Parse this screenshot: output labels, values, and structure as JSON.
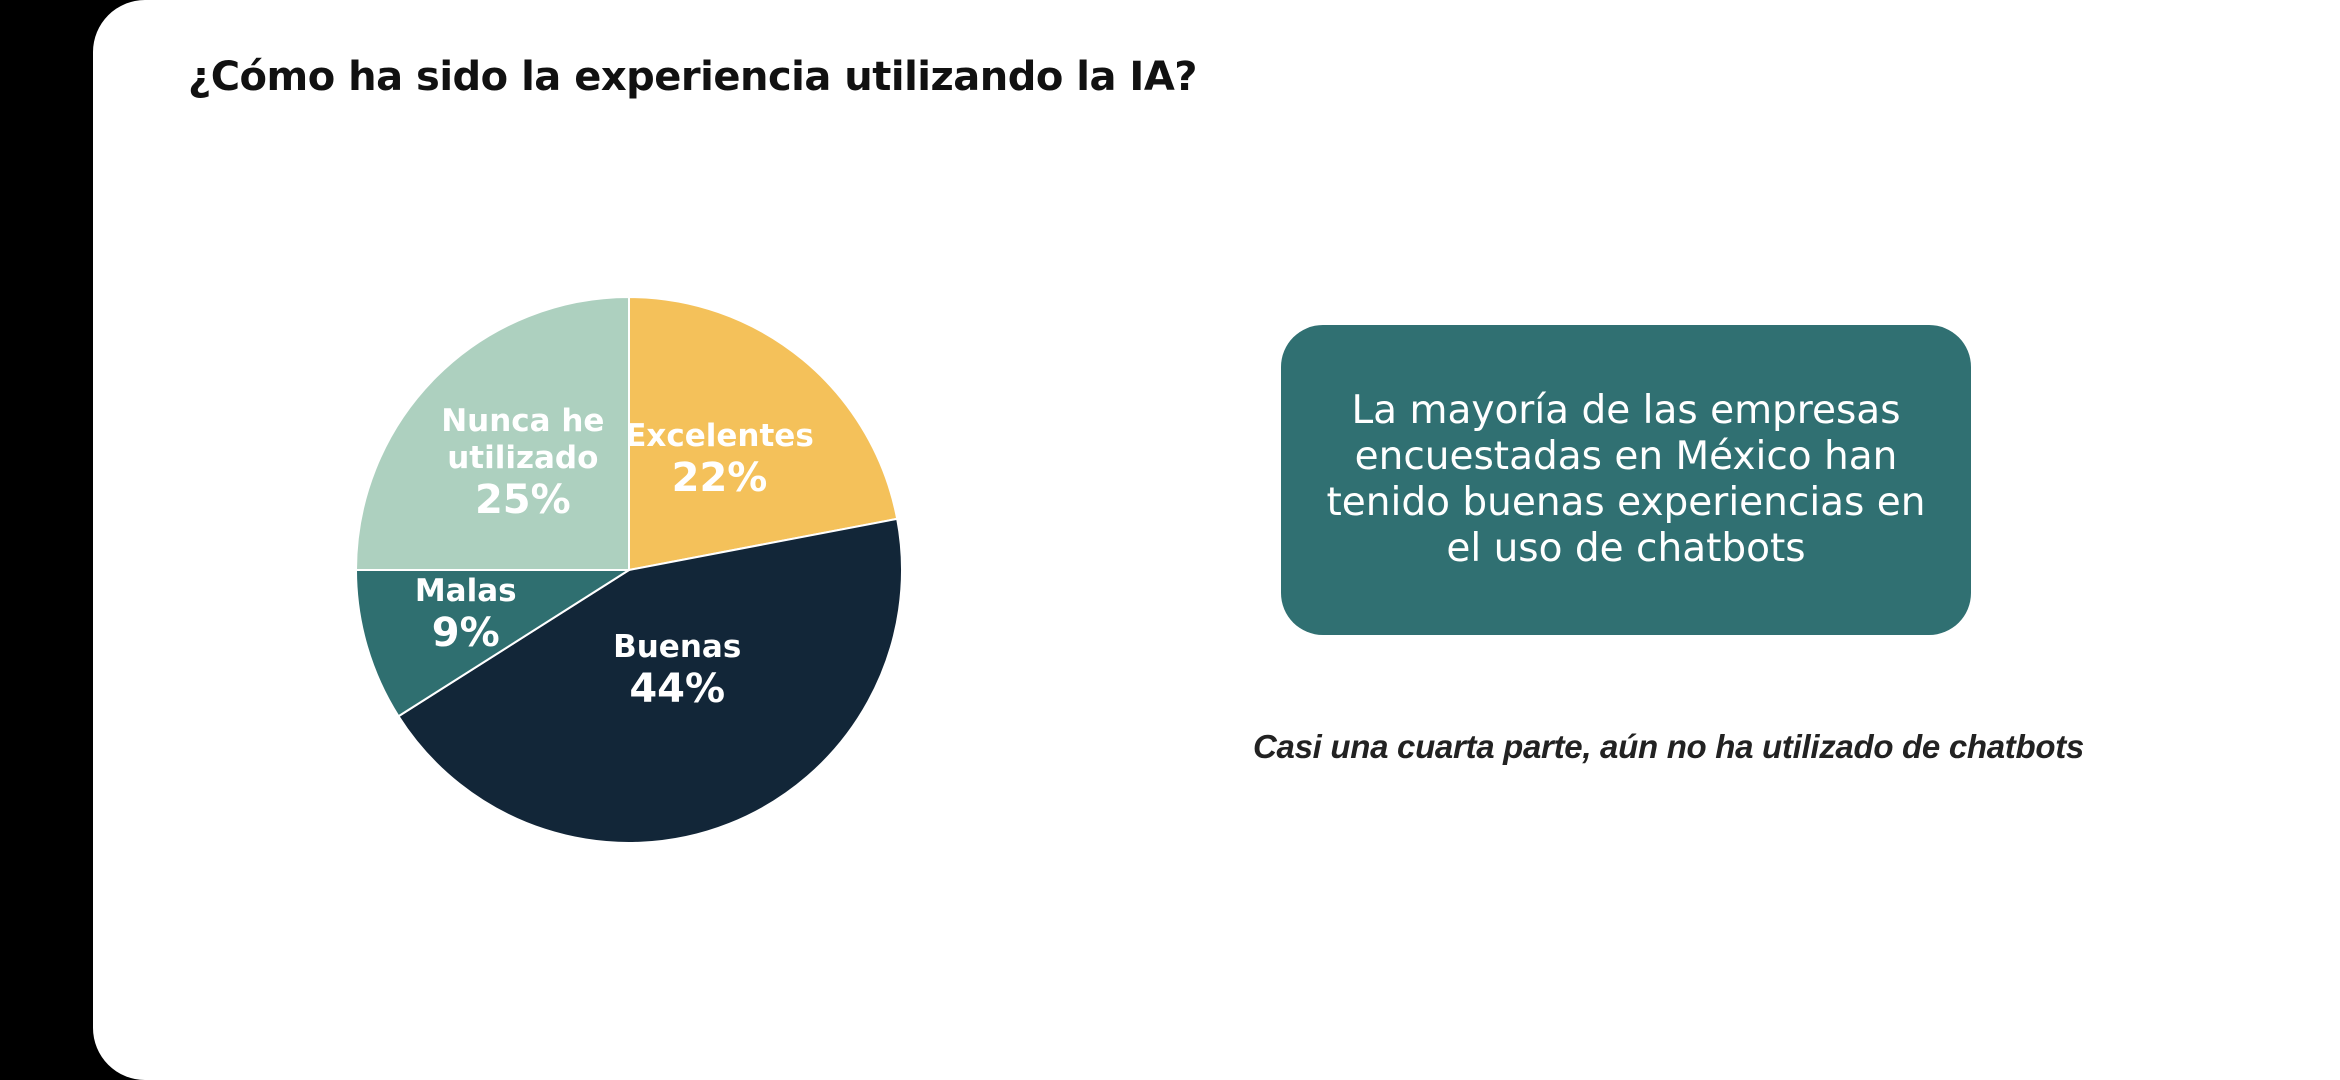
{
  "slide": {
    "title": "¿Cómo ha sido la experiencia utilizando la IA?",
    "callout": {
      "lines": [
        "La mayoría de las empresas",
        "encuestadas en México han",
        "tenido buenas experiencias en",
        "el uso de chatbots"
      ]
    },
    "note": "Casi una cuarta parte, aún no ha utilizado de chatbots"
  },
  "colors": {
    "background": "#000000",
    "slide": "#ffffff",
    "callout": "#307072"
  },
  "chart_data": {
    "type": "pie",
    "categories": [
      "Excelentes",
      "Buenas",
      "Malas",
      "Nunca he utilizado"
    ],
    "values": [
      22,
      44,
      9,
      25
    ],
    "unit": "%",
    "labels": [
      {
        "name_lines": [
          "Excelentes"
        ],
        "value": "22%"
      },
      {
        "name_lines": [
          "Buenas"
        ],
        "value": "44%"
      },
      {
        "name_lines": [
          "Malas"
        ],
        "value": "9%"
      },
      {
        "name_lines": [
          "Nunca he",
          "utilizado"
        ],
        "value": "25%"
      }
    ],
    "colors": [
      "#F4C15A",
      "#122638",
      "#2F6F70",
      "#ADD0BF"
    ],
    "start_angle": "12 o'clock",
    "direction": "clockwise",
    "legend": "none",
    "data_labels": "inside"
  }
}
